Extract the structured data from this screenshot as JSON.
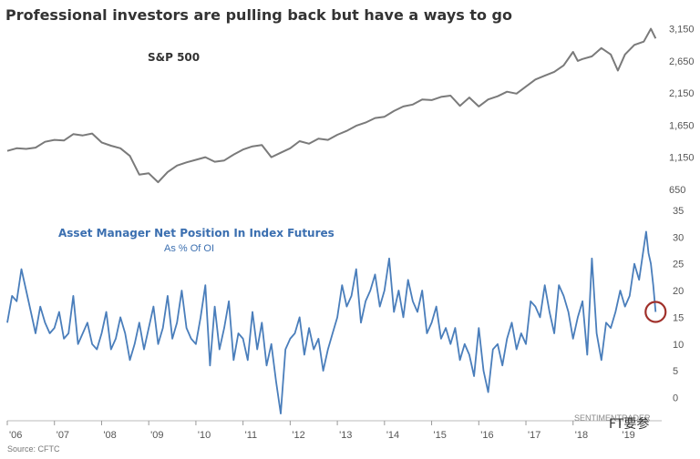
{
  "title": "Professional investors are pulling back but have a ways to go",
  "source": "Source: CFTC",
  "watermark": "SENTIMENTRADER",
  "social_mark": "FT要参",
  "chart_data": [
    {
      "type": "line",
      "series": [
        {
          "name": "S&P 500",
          "color": "#7a7a7a",
          "x": [
            2006.0,
            2006.2,
            2006.4,
            2006.6,
            2006.8,
            2007.0,
            2007.2,
            2007.4,
            2007.6,
            2007.8,
            2008.0,
            2008.2,
            2008.4,
            2008.6,
            2008.8,
            2009.0,
            2009.2,
            2009.4,
            2009.6,
            2009.8,
            2010.0,
            2010.2,
            2010.4,
            2010.6,
            2010.8,
            2011.0,
            2011.2,
            2011.4,
            2011.6,
            2011.8,
            2012.0,
            2012.2,
            2012.4,
            2012.6,
            2012.8,
            2013.0,
            2013.2,
            2013.4,
            2013.6,
            2013.8,
            2014.0,
            2014.2,
            2014.4,
            2014.6,
            2014.8,
            2015.0,
            2015.2,
            2015.4,
            2015.6,
            2015.8,
            2016.0,
            2016.2,
            2016.4,
            2016.6,
            2016.8,
            2017.0,
            2017.2,
            2017.4,
            2017.6,
            2017.8,
            2018.0,
            2018.1,
            2018.2,
            2018.4,
            2018.6,
            2018.8,
            2018.95,
            2019.1,
            2019.3,
            2019.5,
            2019.65,
            2019.75
          ],
          "values": [
            1248,
            1290,
            1280,
            1300,
            1390,
            1420,
            1410,
            1510,
            1490,
            1520,
            1380,
            1330,
            1290,
            1170,
            880,
            900,
            760,
            920,
            1020,
            1070,
            1110,
            1150,
            1080,
            1100,
            1190,
            1270,
            1320,
            1340,
            1150,
            1220,
            1290,
            1400,
            1360,
            1440,
            1420,
            1500,
            1560,
            1640,
            1690,
            1760,
            1780,
            1870,
            1940,
            1970,
            2050,
            2040,
            2090,
            2110,
            1950,
            2080,
            1940,
            2050,
            2100,
            2170,
            2140,
            2250,
            2360,
            2420,
            2480,
            2580,
            2790,
            2650,
            2680,
            2720,
            2850,
            2750,
            2500,
            2750,
            2900,
            2950,
            3150,
            3000
          ]
        }
      ],
      "title": "S&P 500",
      "ylim": [
        450,
        3400
      ],
      "ytick_labels": [
        "650",
        "1,150",
        "1,650",
        "2,150",
        "2,650",
        "3,150"
      ],
      "yticks": [
        650,
        1150,
        1650,
        2150,
        2650,
        3150
      ]
    },
    {
      "type": "line",
      "series": [
        {
          "name": "Asset Manager Net Position In Index Futures",
          "color": "#4a7ebb",
          "x": [
            2006.0,
            2006.1,
            2006.2,
            2006.3,
            2006.4,
            2006.5,
            2006.6,
            2006.7,
            2006.8,
            2006.9,
            2007.0,
            2007.1,
            2007.2,
            2007.3,
            2007.4,
            2007.5,
            2007.6,
            2007.7,
            2007.8,
            2007.9,
            2008.0,
            2008.1,
            2008.2,
            2008.3,
            2008.4,
            2008.5,
            2008.6,
            2008.7,
            2008.8,
            2008.9,
            2009.0,
            2009.1,
            2009.2,
            2009.3,
            2009.4,
            2009.5,
            2009.6,
            2009.7,
            2009.8,
            2009.9,
            2010.0,
            2010.1,
            2010.2,
            2010.3,
            2010.4,
            2010.5,
            2010.6,
            2010.7,
            2010.8,
            2010.9,
            2011.0,
            2011.1,
            2011.2,
            2011.3,
            2011.4,
            2011.5,
            2011.6,
            2011.7,
            2011.8,
            2011.9,
            2012.0,
            2012.1,
            2012.2,
            2012.3,
            2012.4,
            2012.5,
            2012.6,
            2012.7,
            2012.8,
            2012.9,
            2013.0,
            2013.1,
            2013.2,
            2013.3,
            2013.4,
            2013.5,
            2013.6,
            2013.7,
            2013.8,
            2013.9,
            2014.0,
            2014.1,
            2014.2,
            2014.3,
            2014.4,
            2014.5,
            2014.6,
            2014.7,
            2014.8,
            2014.9,
            2015.0,
            2015.1,
            2015.2,
            2015.3,
            2015.4,
            2015.5,
            2015.6,
            2015.7,
            2015.8,
            2015.9,
            2016.0,
            2016.1,
            2016.2,
            2016.3,
            2016.4,
            2016.5,
            2016.6,
            2016.7,
            2016.8,
            2016.9,
            2017.0,
            2017.1,
            2017.2,
            2017.3,
            2017.4,
            2017.5,
            2017.6,
            2017.7,
            2017.8,
            2017.9,
            2018.0,
            2018.1,
            2018.2,
            2018.3,
            2018.4,
            2018.5,
            2018.6,
            2018.7,
            2018.8,
            2018.9,
            2019.0,
            2019.1,
            2019.2,
            2019.3,
            2019.4,
            2019.5,
            2019.55,
            2019.6,
            2019.65,
            2019.7,
            2019.75
          ],
          "values": [
            14,
            19,
            18,
            24,
            20,
            16,
            12,
            17,
            14,
            12,
            13,
            16,
            11,
            12,
            19,
            10,
            12,
            14,
            10,
            9,
            12,
            16,
            9,
            11,
            15,
            12,
            7,
            10,
            14,
            9,
            13,
            17,
            10,
            13,
            19,
            11,
            14,
            20,
            13,
            11,
            10,
            15,
            21,
            6,
            17,
            9,
            13,
            18,
            7,
            12,
            11,
            7,
            16,
            9,
            14,
            6,
            10,
            3,
            -3,
            9,
            11,
            12,
            15,
            8,
            13,
            9,
            11,
            5,
            9,
            12,
            15,
            21,
            17,
            19,
            24,
            14,
            18,
            20,
            23,
            17,
            20,
            26,
            16,
            20,
            15,
            22,
            18,
            16,
            20,
            12,
            14,
            17,
            11,
            13,
            10,
            13,
            7,
            10,
            8,
            4,
            13,
            5,
            1,
            9,
            10,
            6,
            11,
            14,
            9,
            12,
            10,
            18,
            17,
            15,
            21,
            16,
            12,
            21,
            19,
            16,
            11,
            15,
            18,
            8,
            26,
            12,
            7,
            14,
            13,
            16,
            20,
            17,
            19,
            25,
            22,
            28,
            31,
            27,
            25,
            21,
            16
          ]
        }
      ],
      "title": "Asset Manager Net Position In Index Futures",
      "subtitle": "As % Of OI",
      "ylim": [
        -4,
        36
      ],
      "yticks": [
        0,
        5,
        10,
        15,
        20,
        25,
        30,
        35
      ],
      "xticks": [
        2006,
        2007,
        2008,
        2009,
        2010,
        2011,
        2012,
        2013,
        2014,
        2015,
        2016,
        2017,
        2018,
        2019
      ],
      "xtick_labels": [
        "'06",
        "'07",
        "'08",
        "'09",
        "'10",
        "'11",
        "'12",
        "'13",
        "'14",
        "'15",
        "'16",
        "'17",
        "'18",
        "'19"
      ],
      "annotation": {
        "type": "circle",
        "color": "#a0302a",
        "x": 2019.75,
        "y": 16
      }
    }
  ]
}
